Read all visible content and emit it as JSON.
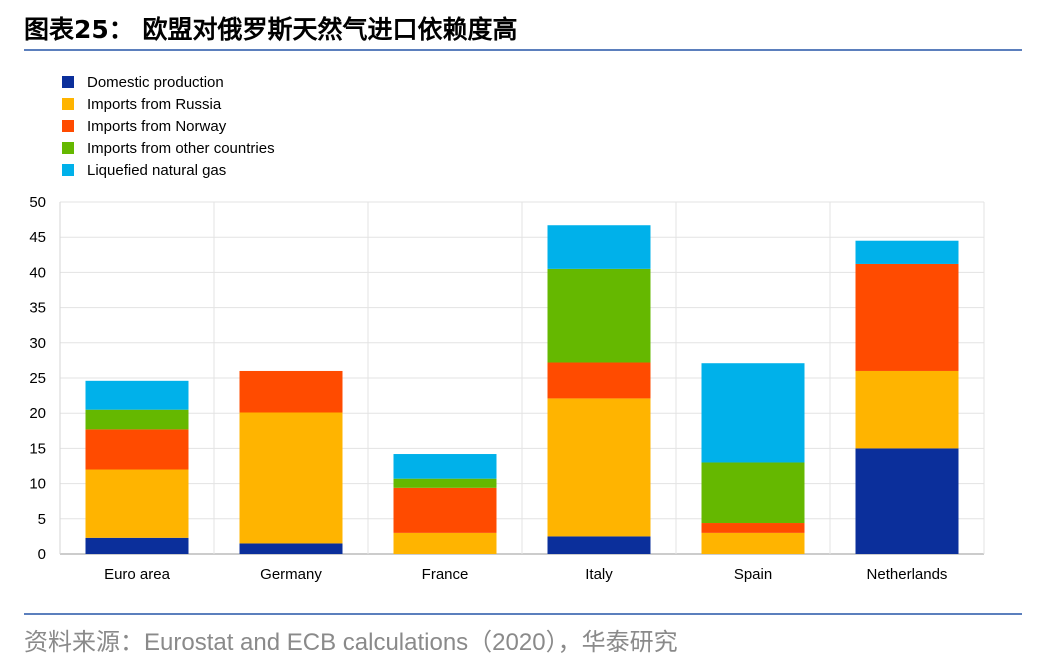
{
  "header": {
    "title": "图表25： 欧盟对俄罗斯天然气进口依赖度高"
  },
  "footer": {
    "source": "资料来源：Eurostat and ECB calculations（2020），华泰研究"
  },
  "chart_data": {
    "type": "bar",
    "stacked": true,
    "categories": [
      "Euro area",
      "Germany",
      "France",
      "Italy",
      "Spain",
      "Netherlands"
    ],
    "series": [
      {
        "name": "Domestic production",
        "color": "#0b2f9b",
        "values": [
          2.3,
          1.5,
          0,
          2.5,
          0,
          15
        ]
      },
      {
        "name": "Imports from Russia",
        "color": "#ffb400",
        "values": [
          9.7,
          18.6,
          3,
          19.6,
          3,
          11
        ]
      },
      {
        "name": "Imports from Norway",
        "color": "#ff4b00",
        "values": [
          5.7,
          5.9,
          6.4,
          5.1,
          1.4,
          15.2
        ]
      },
      {
        "name": "Imports from other countries",
        "color": "#65b800",
        "values": [
          2.8,
          0,
          1.3,
          13.3,
          8.6,
          0
        ]
      },
      {
        "name": "Liquefied natural gas",
        "color": "#00b1ea",
        "values": [
          4.1,
          0,
          3.5,
          6.2,
          14.1,
          3.3
        ]
      }
    ],
    "yticks": [
      0,
      5,
      10,
      15,
      20,
      25,
      30,
      35,
      40,
      45,
      50
    ],
    "ylim": [
      0,
      50
    ],
    "grid": true,
    "legend_position": "top-left"
  }
}
